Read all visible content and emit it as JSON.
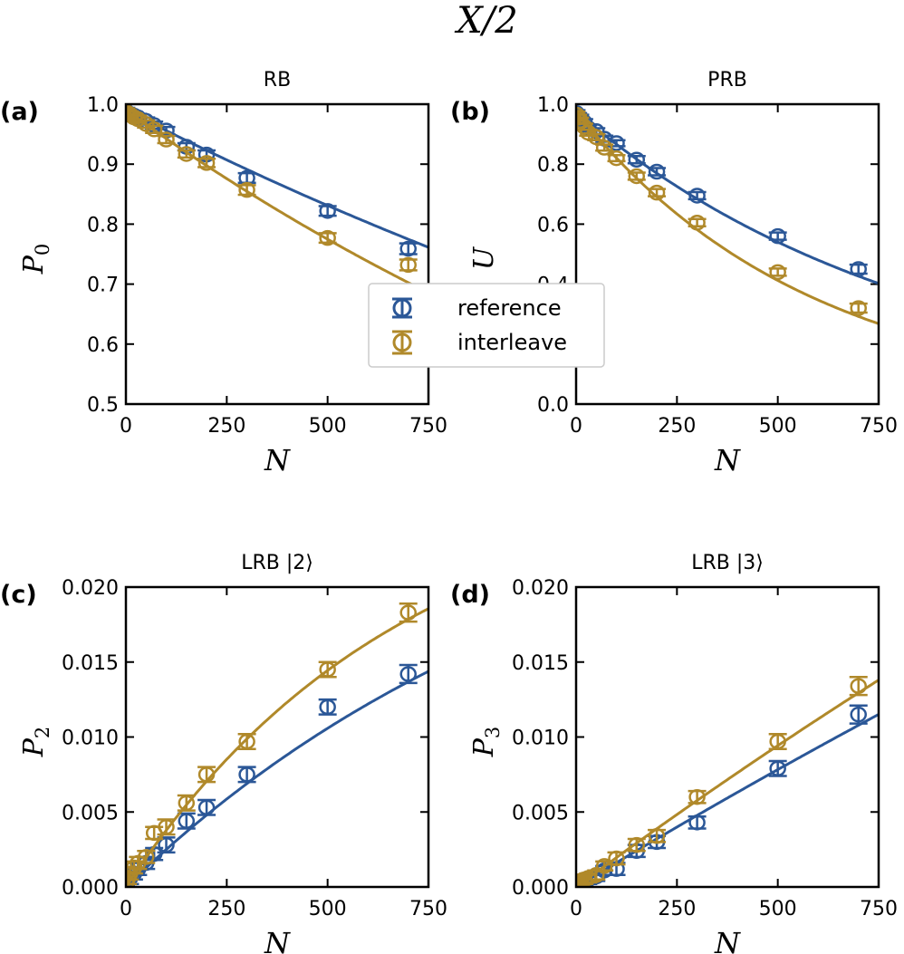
{
  "figure": {
    "title": "X/2"
  },
  "legend": {
    "items": [
      {
        "label": "reference",
        "color": "#2b5797"
      },
      {
        "label": "interleave",
        "color": "#b0892a"
      }
    ]
  },
  "chart_data": [
    {
      "panel_label": "(a)",
      "type": "scatter",
      "title": "RB",
      "xlabel": "N",
      "ylabel": "P0",
      "xlim": [
        0,
        750
      ],
      "ylim": [
        0.5,
        1.0
      ],
      "xticks": [
        "0",
        "250",
        "500",
        "750"
      ],
      "yticks": [
        "0.5",
        "0.6",
        "0.7",
        "0.8",
        "0.9",
        "1.0"
      ],
      "series": [
        {
          "name": "reference",
          "x": [
            1,
            5,
            10,
            20,
            30,
            50,
            70,
            100,
            150,
            200,
            300,
            500,
            700
          ],
          "y": [
            0.988,
            0.985,
            0.983,
            0.981,
            0.978,
            0.972,
            0.965,
            0.956,
            0.929,
            0.916,
            0.877,
            0.822,
            0.759
          ],
          "err": [
            0.006,
            0.006,
            0.006,
            0.006,
            0.006,
            0.006,
            0.006,
            0.006,
            0.006,
            0.007,
            0.008,
            0.008,
            0.009
          ],
          "fit": "exp",
          "fit_a": 0.99,
          "fit_p": 0.99965
        },
        {
          "name": "interleave",
          "x": [
            1,
            5,
            10,
            20,
            30,
            50,
            70,
            100,
            150,
            200,
            300,
            500,
            700
          ],
          "y": [
            0.987,
            0.984,
            0.982,
            0.978,
            0.975,
            0.967,
            0.958,
            0.941,
            0.917,
            0.902,
            0.857,
            0.777,
            0.732
          ],
          "err": [
            0.006,
            0.006,
            0.006,
            0.006,
            0.006,
            0.006,
            0.006,
            0.006,
            0.006,
            0.007,
            0.008,
            0.008,
            0.009
          ],
          "fit": "exp",
          "fit_a": 0.99,
          "fit_p": 0.99951
        }
      ]
    },
    {
      "panel_label": "(b)",
      "type": "scatter",
      "title": "PRB",
      "xlabel": "N",
      "ylabel": "U",
      "xlim": [
        0,
        750
      ],
      "ylim": [
        0.0,
        1.0
      ],
      "xticks": [
        "0",
        "250",
        "500",
        "750"
      ],
      "yticks": [
        "0.0",
        "0.2",
        "0.4",
        "0.6",
        "0.8",
        "1.0"
      ],
      "series": [
        {
          "name": "reference",
          "x": [
            1,
            5,
            10,
            20,
            30,
            50,
            70,
            100,
            150,
            200,
            300,
            500,
            700
          ],
          "y": [
            0.97,
            0.96,
            0.955,
            0.94,
            0.92,
            0.91,
            0.885,
            0.87,
            0.815,
            0.775,
            0.695,
            0.56,
            0.45
          ],
          "err": [
            0.01,
            0.01,
            0.01,
            0.01,
            0.01,
            0.01,
            0.01,
            0.01,
            0.012,
            0.012,
            0.012,
            0.012,
            0.015
          ],
          "fit": "exp",
          "fit_a": 0.975,
          "fit_p": 0.99882
        },
        {
          "name": "interleave",
          "x": [
            1,
            5,
            10,
            20,
            30,
            50,
            70,
            100,
            150,
            200,
            300,
            500,
            700
          ],
          "y": [
            0.965,
            0.955,
            0.945,
            0.925,
            0.905,
            0.89,
            0.855,
            0.82,
            0.76,
            0.705,
            0.605,
            0.44,
            0.32
          ],
          "err": [
            0.01,
            0.01,
            0.01,
            0.01,
            0.01,
            0.01,
            0.01,
            0.01,
            0.012,
            0.012,
            0.012,
            0.012,
            0.015
          ],
          "fit": "exp",
          "fit_a": 0.975,
          "fit_p": 0.99828
        }
      ]
    },
    {
      "panel_label": "(c)",
      "type": "scatter",
      "title": "LRB |2⟩",
      "xlabel": "N",
      "ylabel": "P2",
      "xlim": [
        0,
        750
      ],
      "ylim": [
        0.0,
        0.02
      ],
      "xticks": [
        "0",
        "250",
        "500",
        "750"
      ],
      "yticks": [
        "0.000",
        "0.005",
        "0.010",
        "0.015",
        "0.020"
      ],
      "series": [
        {
          "name": "reference",
          "x": [
            1,
            5,
            10,
            20,
            30,
            50,
            70,
            100,
            150,
            200,
            300,
            500,
            700
          ],
          "y": [
            0.0002,
            0.0004,
            0.0006,
            0.0009,
            0.0012,
            0.0016,
            0.0022,
            0.0028,
            0.0044,
            0.0053,
            0.0075,
            0.012,
            0.0142
          ],
          "err": [
            0.0004,
            0.0004,
            0.0004,
            0.0004,
            0.0004,
            0.0004,
            0.0004,
            0.0005,
            0.0005,
            0.0005,
            0.0005,
            0.0005,
            0.0006
          ],
          "fit": "sat",
          "fit_a": 0.03,
          "fit_p": 0.00087
        },
        {
          "name": "interleave",
          "x": [
            1,
            5,
            10,
            20,
            30,
            50,
            70,
            100,
            150,
            200,
            300,
            500,
            700
          ],
          "y": [
            0.0003,
            0.0006,
            0.0009,
            0.0013,
            0.0016,
            0.002,
            0.0036,
            0.004,
            0.0056,
            0.0075,
            0.0097,
            0.0145,
            0.0183
          ],
          "err": [
            0.0004,
            0.0004,
            0.0004,
            0.0004,
            0.0004,
            0.0004,
            0.0004,
            0.0005,
            0.0005,
            0.0005,
            0.0005,
            0.0005,
            0.0006
          ],
          "fit": "sat",
          "fit_a": 0.028,
          "fit_p": 0.00145
        }
      ]
    },
    {
      "panel_label": "(d)",
      "type": "scatter",
      "title": "LRB |3⟩",
      "xlabel": "N",
      "ylabel": "P3",
      "xlim": [
        0,
        750
      ],
      "ylim": [
        0.0,
        0.02
      ],
      "xticks": [
        "0",
        "250",
        "500",
        "750"
      ],
      "yticks": [
        "0.000",
        "0.005",
        "0.010",
        "0.015",
        "0.020"
      ],
      "series": [
        {
          "name": "reference",
          "x": [
            1,
            5,
            10,
            20,
            30,
            50,
            70,
            100,
            150,
            200,
            300,
            500,
            700
          ],
          "y": [
            0.0001,
            0.0002,
            0.0003,
            0.0004,
            0.0005,
            0.0007,
            0.0011,
            0.0012,
            0.0024,
            0.003,
            0.0043,
            0.0079,
            0.0115
          ],
          "err": [
            0.0003,
            0.0003,
            0.0003,
            0.0003,
            0.0003,
            0.0003,
            0.0003,
            0.0004,
            0.0004,
            0.0004,
            0.0004,
            0.0005,
            0.0006
          ],
          "fit": "sat",
          "fit_a": 0.1,
          "fit_p": 0.000163
        },
        {
          "name": "interleave",
          "x": [
            1,
            5,
            10,
            20,
            30,
            50,
            70,
            100,
            150,
            200,
            300,
            500,
            700
          ],
          "y": [
            0.0002,
            0.0003,
            0.0004,
            0.0005,
            0.0006,
            0.0008,
            0.0014,
            0.0019,
            0.0028,
            0.0034,
            0.006,
            0.0097,
            0.0134
          ],
          "err": [
            0.0003,
            0.0003,
            0.0003,
            0.0003,
            0.0003,
            0.0003,
            0.0003,
            0.0004,
            0.0004,
            0.0004,
            0.0004,
            0.0005,
            0.0006
          ],
          "fit": "sat",
          "fit_a": 0.1,
          "fit_p": 0.000198
        }
      ]
    }
  ]
}
